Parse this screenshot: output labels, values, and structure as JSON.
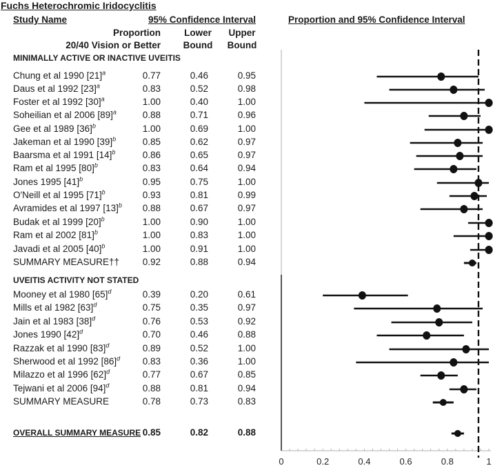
{
  "title": "Fuchs Heterochromic Iridocyclitis",
  "headers": {
    "study_name": "Study Name",
    "ci_group": "95% Confidence Interval",
    "proportion_line1": "Proportion",
    "proportion_line2": "20/40 Vision or Better",
    "lower_line1": "Lower",
    "lower_line2": "Bound",
    "upper_line1": "Upper",
    "upper_line2": "Bound",
    "plot_title": "Proportion and 95% Confidence Interval"
  },
  "groups": [
    {
      "label": "MINIMALLY ACTIVE OR INACTIVE UVEITIS",
      "studies": [
        {
          "name": "Chung et al 1990 [21]",
          "sup": "a",
          "p": "0.77",
          "lo": "0.46",
          "hi": "0.95"
        },
        {
          "name": "Daus et al 1992 [23]",
          "sup": "a",
          "p": "0.83",
          "lo": "0.52",
          "hi": "0.98"
        },
        {
          "name": "Foster et al 1992 [30]",
          "sup": "a",
          "p": "1.00",
          "lo": "0.40",
          "hi": "1.00"
        },
        {
          "name": "Soheilian et al 2006 [89]",
          "sup": "a",
          "p": "0.88",
          "lo": "0.71",
          "hi": "0.96"
        },
        {
          "name": "Gee et al 1989 [36]",
          "sup": "b",
          "p": "1.00",
          "lo": "0.69",
          "hi": "1.00"
        },
        {
          "name": "Jakeman et al 1990 [39]",
          "sup": "b",
          "p": "0.85",
          "lo": "0.62",
          "hi": "0.97"
        },
        {
          "name": "Baarsma et al 1991 [14]",
          "sup": "b",
          "p": "0.86",
          "lo": "0.65",
          "hi": "0.97"
        },
        {
          "name": "Ram et al 1995 [80]",
          "sup": "b",
          "p": "0.83",
          "lo": "0.64",
          "hi": "0.94"
        },
        {
          "name": "Jones 1995 [41]",
          "sup": "b",
          "p": "0.95",
          "lo": "0.75",
          "hi": "1.00"
        },
        {
          "name": "O'Neill et al 1995 [71]",
          "sup": "b",
          "p": "0.93",
          "lo": "0.81",
          "hi": "0.99"
        },
        {
          "name": "Avramides et al 1997 [13]",
          "sup": "b",
          "p": "0.88",
          "lo": "0.67",
          "hi": "0.97"
        },
        {
          "name": "Budak et al 1999 [20]",
          "sup": "b",
          "p": "1.00",
          "lo": "0.90",
          "hi": "1.00"
        },
        {
          "name": "Ram et al 2002 [81]",
          "sup": "b",
          "p": "1.00",
          "lo": "0.83",
          "hi": "1.00"
        },
        {
          "name": "Javadi et al 2005 [40]",
          "sup": "b",
          "p": "1.00",
          "lo": "0.91",
          "hi": "1.00"
        }
      ],
      "summary": {
        "name": "SUMMARY MEASURE††",
        "p": "0.92",
        "lo": "0.88",
        "hi": "0.94"
      }
    },
    {
      "label": "UVEITIS ACTIVITY NOT STATED",
      "studies": [
        {
          "name": "Mooney et al 1980 [65]",
          "sup": "d",
          "p": "0.39",
          "lo": "0.20",
          "hi": "0.61"
        },
        {
          "name": "Mills et al 1982 [63]",
          "sup": "d",
          "p": "0.75",
          "lo": "0.35",
          "hi": "0.97"
        },
        {
          "name": "Jain et al 1983 [38]",
          "sup": "d",
          "p": "0.76",
          "lo": "0.53",
          "hi": "0.92"
        },
        {
          "name": "Jones 1990 [42]",
          "sup": "d",
          "p": "0.70",
          "lo": "0.46",
          "hi": "0.88"
        },
        {
          "name": "Razzak et al 1990 [83]",
          "sup": "d",
          "p": "0.89",
          "lo": "0.52",
          "hi": "1.00"
        },
        {
          "name": "Sherwood et al 1992 [86]",
          "sup": "d",
          "p": "0.83",
          "lo": "0.36",
          "hi": "1.00"
        },
        {
          "name": "Milazzo et al 1996 [62]",
          "sup": "d",
          "p": "0.77",
          "lo": "0.67",
          "hi": "0.85"
        },
        {
          "name": "Tejwani et al 2006 [94]",
          "sup": "d",
          "p": "0.88",
          "lo": "0.81",
          "hi": "0.94"
        }
      ],
      "summary": {
        "name": "SUMMARY MEASURE",
        "p": "0.78",
        "lo": "0.73",
        "hi": "0.83"
      }
    }
  ],
  "overall": {
    "name": "OVERALL SUMMARY MEASURE",
    "p": "0.85",
    "lo": "0.82",
    "hi": "0.88"
  },
  "chart_data": {
    "type": "scatter",
    "subtype": "forest-plot",
    "title": "Proportion and 95% Confidence Interval",
    "xlabel": "",
    "ylabel": "",
    "xlim": [
      0,
      1
    ],
    "x_ticks": [
      "0",
      "0.2",
      "0.4",
      "0.6",
      "0.8",
      "1"
    ],
    "minor_tick_step": 0.04,
    "reference_line": 0.95,
    "grid": false,
    "legend": "none",
    "series": [
      {
        "name": "MINIMALLY ACTIVE OR INACTIVE UVEITIS",
        "points": [
          {
            "label": "Chung et al 1990",
            "est": 0.77,
            "lo": 0.46,
            "hi": 0.95
          },
          {
            "label": "Daus et al 1992",
            "est": 0.83,
            "lo": 0.52,
            "hi": 0.98
          },
          {
            "label": "Foster et al 1992",
            "est": 1.0,
            "lo": 0.4,
            "hi": 1.0
          },
          {
            "label": "Soheilian et al 2006",
            "est": 0.88,
            "lo": 0.71,
            "hi": 0.96
          },
          {
            "label": "Gee et al 1989",
            "est": 1.0,
            "lo": 0.69,
            "hi": 1.0
          },
          {
            "label": "Jakeman et al 1990",
            "est": 0.85,
            "lo": 0.62,
            "hi": 0.97
          },
          {
            "label": "Baarsma et al 1991",
            "est": 0.86,
            "lo": 0.65,
            "hi": 0.97
          },
          {
            "label": "Ram et al 1995",
            "est": 0.83,
            "lo": 0.64,
            "hi": 0.94
          },
          {
            "label": "Jones 1995",
            "est": 0.95,
            "lo": 0.75,
            "hi": 1.0
          },
          {
            "label": "O'Neill et al 1995",
            "est": 0.93,
            "lo": 0.81,
            "hi": 0.99
          },
          {
            "label": "Avramides et al 1997",
            "est": 0.88,
            "lo": 0.67,
            "hi": 0.97
          },
          {
            "label": "Budak et al 1999",
            "est": 1.0,
            "lo": 0.9,
            "hi": 1.0
          },
          {
            "label": "Ram et al 2002",
            "est": 1.0,
            "lo": 0.83,
            "hi": 1.0
          },
          {
            "label": "Javadi et al 2005",
            "est": 1.0,
            "lo": 0.91,
            "hi": 1.0
          },
          {
            "label": "SUMMARY MEASURE",
            "est": 0.92,
            "lo": 0.88,
            "hi": 0.94,
            "summary": true
          }
        ]
      },
      {
        "name": "UVEITIS ACTIVITY NOT STATED",
        "points": [
          {
            "label": "Mooney et al 1980",
            "est": 0.39,
            "lo": 0.2,
            "hi": 0.61
          },
          {
            "label": "Mills et al 1982",
            "est": 0.75,
            "lo": 0.35,
            "hi": 0.97
          },
          {
            "label": "Jain et al 1983",
            "est": 0.76,
            "lo": 0.53,
            "hi": 0.92
          },
          {
            "label": "Jones 1990",
            "est": 0.7,
            "lo": 0.46,
            "hi": 0.88
          },
          {
            "label": "Razzak et al 1990",
            "est": 0.89,
            "lo": 0.52,
            "hi": 1.0
          },
          {
            "label": "Sherwood et al 1992",
            "est": 0.83,
            "lo": 0.36,
            "hi": 1.0
          },
          {
            "label": "Milazzo et al 1996",
            "est": 0.77,
            "lo": 0.67,
            "hi": 0.85
          },
          {
            "label": "Tejwani et al 2006",
            "est": 0.88,
            "lo": 0.81,
            "hi": 0.94
          },
          {
            "label": "SUMMARY MEASURE",
            "est": 0.78,
            "lo": 0.73,
            "hi": 0.83,
            "summary": true
          }
        ]
      },
      {
        "name": "OVERALL",
        "points": [
          {
            "label": "OVERALL SUMMARY MEASURE",
            "est": 0.85,
            "lo": 0.82,
            "hi": 0.88,
            "summary": true
          }
        ]
      }
    ]
  }
}
